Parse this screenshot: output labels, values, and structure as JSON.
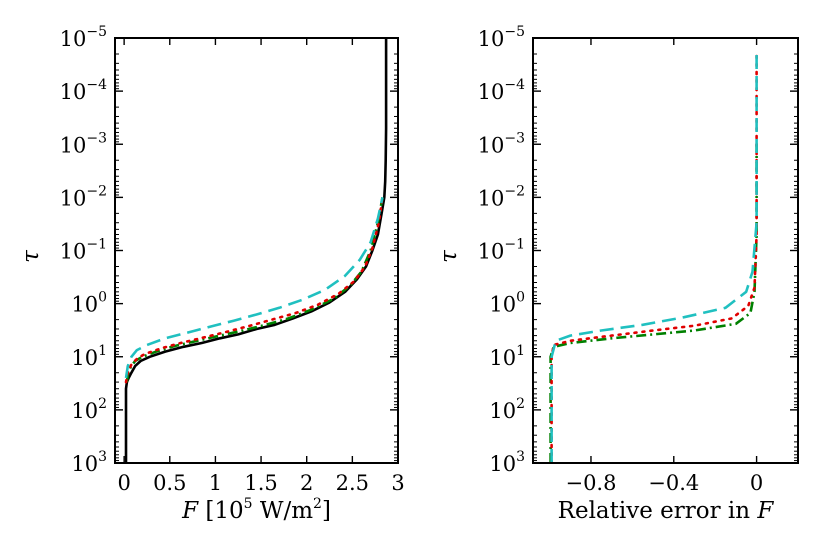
{
  "chart_data": [
    {
      "type": "line",
      "panel": "left",
      "xlabel": "F [10^5 W/m^2]",
      "xlabel_parts": {
        "var": "F",
        "open": "[10",
        "exp": "5",
        "mid": " W/m",
        "exp2": "2",
        "close": "]"
      },
      "ylabel": "τ",
      "xlim": [
        -0.1,
        3.0
      ],
      "xticks": [
        0,
        0.5,
        1,
        1.5,
        2,
        2.5,
        3
      ],
      "xtick_labels": [
        "0",
        "0.5",
        "1",
        "1.5",
        "2",
        "2.5",
        "3"
      ],
      "yscale": "log",
      "ylim": [
        1e-05,
        1000.0
      ],
      "y_inverted": true,
      "yticks_exp": [
        "−5",
        "−4",
        "−3",
        "−2",
        "−1",
        "0",
        "1",
        "2",
        "3"
      ],
      "ytick_base": "10",
      "series": [
        {
          "name": "black-solid",
          "color": "#000000",
          "dash": "",
          "x": [
            0.02,
            0.02,
            0.02,
            0.03,
            0.05,
            0.08,
            0.12,
            0.18,
            0.28,
            0.45,
            0.65,
            0.85,
            1.05,
            1.25,
            1.45,
            1.65,
            1.85,
            2.05,
            2.25,
            2.42,
            2.55,
            2.65,
            2.72,
            2.78,
            2.82,
            2.85,
            2.86,
            2.865,
            2.87,
            2.87
          ],
          "tau": [
            1000,
            100,
            40,
            30,
            25,
            20,
            15,
            12,
            10,
            8,
            6.5,
            5.5,
            4.5,
            3.8,
            3.0,
            2.5,
            1.9,
            1.4,
            0.95,
            0.6,
            0.35,
            0.2,
            0.1,
            0.05,
            0.02,
            0.01,
            0.005,
            0.002,
            0.0005,
            1e-05
          ]
        },
        {
          "name": "green-dashdot",
          "color": "#008000",
          "dash": "10 4 2 4",
          "x": [
            0.03,
            0.04,
            0.07,
            0.12,
            0.2,
            0.35,
            0.55,
            0.8,
            1.05,
            1.3,
            1.55,
            1.8,
            2.05,
            2.3,
            2.48,
            2.6,
            2.7,
            2.78,
            2.83
          ],
          "tau": [
            30,
            22,
            16,
            12,
            10,
            8,
            6.3,
            5,
            4,
            3.2,
            2.5,
            1.9,
            1.3,
            0.8,
            0.45,
            0.25,
            0.1,
            0.03,
            0.01
          ]
        },
        {
          "name": "red-dotted",
          "color": "#e00000",
          "dash": "2 6",
          "x": [
            0.02,
            0.04,
            0.08,
            0.14,
            0.22,
            0.4,
            0.62,
            0.88,
            1.12,
            1.38,
            1.62,
            1.88,
            2.12,
            2.35,
            2.52,
            2.64,
            2.72,
            2.79,
            2.83
          ],
          "tau": [
            30,
            20,
            14,
            11,
            9,
            7,
            5.5,
            4.3,
            3.4,
            2.6,
            2.0,
            1.5,
            1.05,
            0.65,
            0.38,
            0.2,
            0.09,
            0.03,
            0.01
          ]
        },
        {
          "name": "cyan-dashed",
          "color": "#20c0c0",
          "dash": "14 7",
          "x": [
            0.02,
            0.04,
            0.08,
            0.14,
            0.25,
            0.45,
            0.7,
            0.95,
            1.2,
            1.45,
            1.7,
            1.95,
            2.2,
            2.42,
            2.58,
            2.7,
            2.78,
            2.83
          ],
          "tau": [
            25,
            15,
            10,
            7.5,
            6,
            4.5,
            3.5,
            2.7,
            2.1,
            1.6,
            1.2,
            0.85,
            0.55,
            0.3,
            0.15,
            0.07,
            0.025,
            0.01
          ]
        }
      ]
    },
    {
      "type": "line",
      "panel": "right",
      "xlabel": "Relative error in F",
      "xlabel_parts": {
        "text": "Relative error in ",
        "var": "F"
      },
      "ylabel": "τ",
      "xlim": [
        -1.08,
        0.2
      ],
      "xticks": [
        -0.8,
        -0.4,
        0
      ],
      "xtick_labels": [
        "−0.8",
        "−0.4",
        "0"
      ],
      "yscale": "log",
      "ylim": [
        1e-05,
        1000.0
      ],
      "y_inverted": true,
      "yticks_exp": [
        "−5",
        "−4",
        "−3",
        "−2",
        "−1",
        "0",
        "1",
        "2",
        "3"
      ],
      "ytick_base": "10",
      "series": [
        {
          "name": "green-dashdot",
          "color": "#008000",
          "dash": "10 4 2 4",
          "x": [
            -0.995,
            -0.995,
            -0.98,
            -0.9,
            -0.7,
            -0.5,
            -0.3,
            -0.1,
            -0.03,
            -0.01,
            0.0,
            0.0
          ],
          "tau": [
            1000,
            10,
            6.5,
            5.5,
            4.5,
            3.8,
            3.2,
            2.4,
            1.5,
            0.6,
            0.05,
            0.001
          ]
        },
        {
          "name": "red-dotted",
          "color": "#e00000",
          "dash": "2 6",
          "x": [
            -0.99,
            -0.99,
            -0.98,
            -0.9,
            -0.7,
            -0.5,
            -0.3,
            -0.12,
            -0.04,
            -0.01,
            0.0,
            0.0
          ],
          "tau": [
            1000,
            10,
            6.0,
            5.0,
            4.0,
            3.2,
            2.6,
            1.9,
            1.1,
            0.5,
            0.05,
            2e-05
          ]
        },
        {
          "name": "cyan-dashed",
          "color": "#20c0c0",
          "dash": "14 7",
          "x": [
            -0.99,
            -0.99,
            -0.97,
            -0.9,
            -0.75,
            -0.55,
            -0.35,
            -0.15,
            -0.05,
            -0.02,
            0.0,
            0.0
          ],
          "tau": [
            1000,
            10,
            5.0,
            4.0,
            3.2,
            2.5,
            1.8,
            1.2,
            0.6,
            0.25,
            0.03,
            2e-05
          ]
        }
      ]
    }
  ]
}
